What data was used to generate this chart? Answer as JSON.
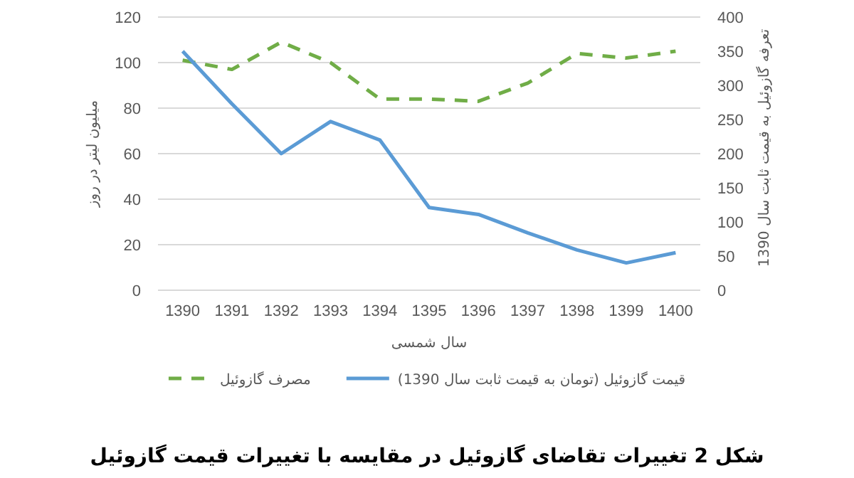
{
  "chart_data": {
    "type": "line",
    "title": "شکل 2 تغییرات تقاضای گازوئیل در مقایسه با تغییرات قیمت گازوئیل",
    "xlabel": "سال شمسی",
    "ylabel": "میلیون لیتر در روز",
    "y2label": "تعرفه گازوئیل به قیمت ثابت سال 1390",
    "categories": [
      "1390",
      "1391",
      "1392",
      "1393",
      "1394",
      "1395",
      "1396",
      "1397",
      "1398",
      "1399",
      "1400"
    ],
    "series": [
      {
        "name": "مصرف گازوئیل",
        "color": "#70ad47",
        "line_style": "dashed",
        "values": [
          101,
          97,
          109,
          100,
          84,
          84,
          83,
          91,
          104,
          102,
          105
        ]
      },
      {
        "name": "قیمت گازوئیل (تومان به قیمت ثابت سال 1390)",
        "color": "#5b9bd5",
        "line_style": "solid",
        "axis": "y2",
        "values": [
          350,
          273,
          200,
          247,
          220,
          121,
          111,
          84,
          59,
          40,
          55
        ]
      }
    ],
    "ylim": [
      0,
      120
    ],
    "yticks": [
      0,
      20,
      40,
      60,
      80,
      100,
      120
    ],
    "y2lim": [
      0,
      400
    ],
    "y2ticks": [
      0,
      50,
      100,
      150,
      200,
      250,
      300,
      350,
      400
    ],
    "grid": "y",
    "legend": "bottom",
    "marker": "none"
  }
}
